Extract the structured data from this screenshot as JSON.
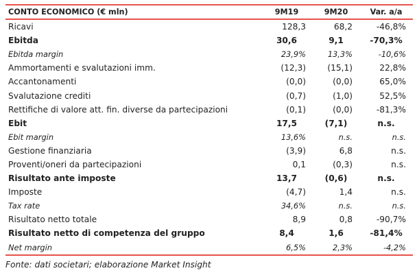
{
  "table": {
    "headers": [
      "CONTO ECONOMICO (€ mln)",
      "9M19",
      "9M20",
      "Var. a/a"
    ],
    "rows": [
      {
        "label": "Ricavi",
        "v1": "128,3",
        "v2": "68,2",
        "v3": "-46,8%",
        "style": "normal"
      },
      {
        "label": "Ebitda",
        "v1": "30,6",
        "v2": "9,1",
        "v3": "-70,3%",
        "style": "bold"
      },
      {
        "label": "Ebitda margin",
        "v1": "23,9%",
        "v2": "13,3%",
        "v3": "-10,6%",
        "style": "italic"
      },
      {
        "label": "Ammortamenti e svalutazioni imm.",
        "v1": "(12,3)",
        "v2": "(15,1)",
        "v3": "22,8%",
        "style": "normal"
      },
      {
        "label": "Accantonamenti",
        "v1": "(0,0)",
        "v2": "(0,0)",
        "v3": "65,0%",
        "style": "normal"
      },
      {
        "label": "Svalutazione crediti",
        "v1": "(0,7)",
        "v2": "(1,0)",
        "v3": "52,5%",
        "style": "normal"
      },
      {
        "label": "Rettifiche di valore att. fin. diverse da partecipazioni",
        "v1": "(0,1)",
        "v2": "(0,0)",
        "v3": "-81,3%",
        "style": "normal"
      },
      {
        "label": "Ebit",
        "v1": "17,5",
        "v2": "(7,1)",
        "v3": "n.s.",
        "style": "bold"
      },
      {
        "label": "Ebit margin",
        "v1": "13,6%",
        "v2": "n.s.",
        "v3": "n.s.",
        "style": "italic"
      },
      {
        "label": "Gestione finanziaria",
        "v1": "(3,9)",
        "v2": "6,8",
        "v3": "n.s.",
        "style": "normal"
      },
      {
        "label": "Proventi/oneri da partecipazioni",
        "v1": "0,1",
        "v2": "(0,3)",
        "v3": "n.s.",
        "style": "normal"
      },
      {
        "label": "Risultato ante imposte",
        "v1": "13,7",
        "v2": "(0,6)",
        "v3": "n.s.",
        "style": "bold"
      },
      {
        "label": "Imposte",
        "v1": "(4,7)",
        "v2": "1,4",
        "v3": "n.s.",
        "style": "normal"
      },
      {
        "label": "Tax rate",
        "v1": "34,6%",
        "v2": "n.s.",
        "v3": "n.s.",
        "style": "italic"
      },
      {
        "label": "Risultato netto totale",
        "v1": "8,9",
        "v2": "0,8",
        "v3": "-90,7%",
        "style": "normal"
      },
      {
        "label": "Risultato netto di competenza del gruppo",
        "v1": "8,4",
        "v2": "1,6",
        "v3": "-81,4%",
        "style": "bold"
      },
      {
        "label": "Net margin",
        "v1": "6,5%",
        "v2": "2,3%",
        "v3": "-4,2%",
        "style": "italic"
      }
    ]
  },
  "source": "Fonte: dati societari; elaborazione Market Insight",
  "colors": {
    "accent_rule": "#e8524a"
  }
}
